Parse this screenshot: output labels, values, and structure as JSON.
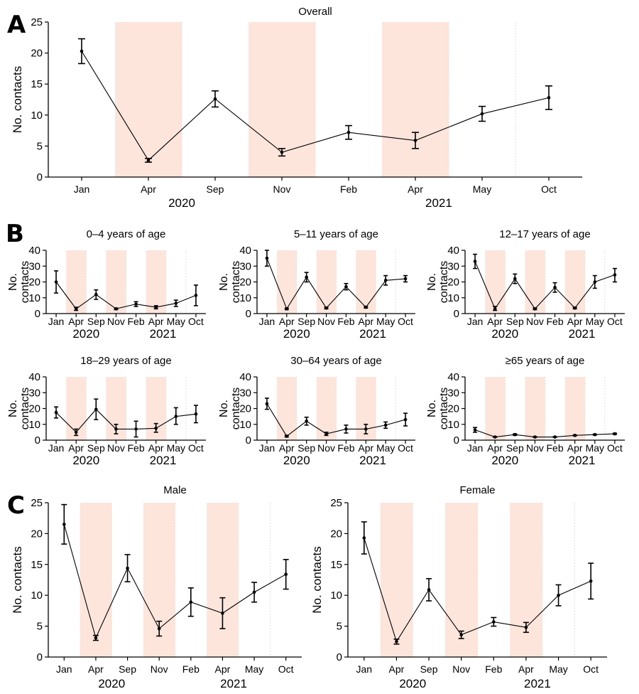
{
  "colors": {
    "shade": "#fde5dc",
    "line": "#000000",
    "grid": "#d9d9d9"
  },
  "chart_data": [
    {
      "panel": "A",
      "type": "line",
      "title": "Overall",
      "categories": [
        "Jan",
        "Apr",
        "Sep",
        "Nov",
        "Feb",
        "Apr",
        "May",
        "Oct"
      ],
      "years": [
        "2020",
        "2021"
      ],
      "ylabel": "No. contacts",
      "ylim": [
        0,
        25
      ],
      "yticks": [
        0,
        5,
        10,
        15,
        20,
        25
      ],
      "shaded_categories": [
        "Apr",
        "Nov",
        "Apr"
      ],
      "values": [
        20.3,
        2.7,
        12.6,
        4.0,
        7.2,
        5.9,
        10.2,
        12.8
      ],
      "lower": [
        18.3,
        2.4,
        11.3,
        3.4,
        6.1,
        4.6,
        9.0,
        10.9
      ],
      "upper": [
        22.3,
        3.0,
        13.9,
        4.6,
        8.3,
        7.2,
        11.4,
        14.7
      ]
    },
    {
      "panel": "B",
      "type": "line",
      "title": "0–4 years of age",
      "categories": [
        "Jan",
        "Apr",
        "Sep",
        "Nov",
        "Feb",
        "Apr",
        "May",
        "Oct"
      ],
      "years": [
        "2020",
        "2021"
      ],
      "ylabel": "No. contacts",
      "ylim": [
        0,
        40
      ],
      "yticks": [
        0,
        10,
        20,
        30,
        40
      ],
      "values": [
        20,
        3,
        12,
        3,
        6,
        4,
        6.5,
        11.5
      ],
      "lower": [
        13,
        2,
        9,
        2.5,
        4.5,
        3,
        4.5,
        5
      ],
      "upper": [
        27,
        4,
        15,
        3.5,
        7.5,
        5,
        8.5,
        18
      ]
    },
    {
      "panel": "",
      "type": "line",
      "title": "5–11 years of age",
      "categories": [
        "Jan",
        "Apr",
        "Sep",
        "Nov",
        "Feb",
        "Apr",
        "May",
        "Oct"
      ],
      "years": [
        "2020",
        "2021"
      ],
      "ylabel": "No. contacts",
      "ylim": [
        0,
        40
      ],
      "yticks": [
        0,
        10,
        20,
        30,
        40
      ],
      "values": [
        35,
        3,
        23,
        3.5,
        17,
        4,
        21,
        22
      ],
      "lower": [
        30,
        2.5,
        20,
        3,
        15,
        3.5,
        18,
        20
      ],
      "upper": [
        40,
        3.5,
        26,
        4,
        19,
        4.5,
        24,
        24
      ]
    },
    {
      "panel": "",
      "type": "line",
      "title": "12–17 years of age",
      "categories": [
        "Jan",
        "Apr",
        "Sep",
        "Nov",
        "Feb",
        "Apr",
        "May",
        "Oct"
      ],
      "years": [
        "2020",
        "2021"
      ],
      "ylabel": "No. contacts",
      "ylim": [
        0,
        40
      ],
      "yticks": [
        0,
        10,
        20,
        30,
        40
      ],
      "values": [
        33,
        3,
        22,
        3,
        16.5,
        3.5,
        20,
        24.5
      ],
      "lower": [
        28.5,
        2,
        19,
        2.5,
        13.5,
        3,
        16,
        20
      ],
      "upper": [
        37.5,
        4.5,
        25,
        3.5,
        19.5,
        4,
        24,
        28.5
      ]
    },
    {
      "panel": "",
      "type": "line",
      "title": "18–29 years of age",
      "categories": [
        "Jan",
        "Apr",
        "Sep",
        "Nov",
        "Feb",
        "Apr",
        "May",
        "Oct"
      ],
      "years": [
        "2020",
        "2021"
      ],
      "ylabel": "No. contacts",
      "ylim": [
        0,
        40
      ],
      "yticks": [
        0,
        10,
        20,
        30,
        40
      ],
      "values": [
        17.5,
        5,
        19.5,
        7,
        7,
        7.5,
        15,
        16.5
      ],
      "lower": [
        14,
        3,
        13,
        4,
        2,
        5,
        10,
        11
      ],
      "upper": [
        21,
        7,
        26,
        10,
        12,
        10.5,
        20.5,
        22
      ]
    },
    {
      "panel": "",
      "type": "line",
      "title": "30–64 years of age",
      "categories": [
        "Jan",
        "Apr",
        "Sep",
        "Nov",
        "Feb",
        "Apr",
        "May",
        "Oct"
      ],
      "years": [
        "2020",
        "2021"
      ],
      "ylabel": "No. contacts",
      "ylim": [
        0,
        40
      ],
      "yticks": [
        0,
        10,
        20,
        30,
        40
      ],
      "values": [
        23,
        2.5,
        12,
        4,
        7,
        7,
        9.5,
        13
      ],
      "lower": [
        19.5,
        2,
        9.5,
        3,
        4.5,
        4,
        7.5,
        9
      ],
      "upper": [
        26.5,
        3,
        14.5,
        5,
        9.5,
        10,
        11.5,
        17
      ]
    },
    {
      "panel": "",
      "type": "line",
      "title": "≥65 years of age",
      "categories": [
        "Jan",
        "Apr",
        "Sep",
        "Nov",
        "Feb",
        "Apr",
        "May",
        "Oct"
      ],
      "years": [
        "2020",
        "2021"
      ],
      "ylabel": "No. contacts",
      "ylim": [
        0,
        40
      ],
      "yticks": [
        0,
        10,
        20,
        30,
        40
      ],
      "values": [
        6.5,
        2,
        3.5,
        2,
        2,
        3,
        3.5,
        4
      ],
      "lower": [
        5,
        1.8,
        3,
        1.8,
        1.8,
        2.7,
        3.2,
        3.6
      ],
      "upper": [
        8,
        2.2,
        4,
        2.2,
        2.2,
        3.3,
        3.8,
        4.4
      ]
    },
    {
      "panel": "C",
      "type": "line",
      "title": "Male",
      "categories": [
        "Jan",
        "Apr",
        "Sep",
        "Nov",
        "Feb",
        "Apr",
        "May",
        "Oct"
      ],
      "years": [
        "2020",
        "2021"
      ],
      "ylabel": "No. contacts",
      "ylim": [
        0,
        25
      ],
      "yticks": [
        0,
        5,
        10,
        15,
        20,
        25
      ],
      "values": [
        21.5,
        3.1,
        14.4,
        4.6,
        8.9,
        7.1,
        10.5,
        13.4
      ],
      "lower": [
        18.3,
        2.7,
        12.2,
        3.4,
        6.6,
        4.6,
        8.9,
        11.0
      ],
      "upper": [
        24.7,
        3.5,
        16.6,
        5.8,
        11.2,
        9.6,
        12.1,
        15.8
      ]
    },
    {
      "panel": "",
      "type": "line",
      "title": "Female",
      "categories": [
        "Jan",
        "Apr",
        "Sep",
        "Nov",
        "Feb",
        "Apr",
        "May",
        "Oct"
      ],
      "years": [
        "2020",
        "2021"
      ],
      "ylabel": "No. contacts",
      "ylim": [
        0,
        25
      ],
      "yticks": [
        0,
        5,
        10,
        15,
        20,
        25
      ],
      "values": [
        19.3,
        2.5,
        10.9,
        3.6,
        5.7,
        4.8,
        10.0,
        12.3
      ],
      "lower": [
        16.7,
        2.1,
        9.1,
        3.0,
        5.0,
        4.0,
        8.3,
        9.4
      ],
      "upper": [
        21.9,
        2.9,
        12.7,
        4.2,
        6.4,
        5.6,
        11.7,
        15.2
      ]
    }
  ]
}
